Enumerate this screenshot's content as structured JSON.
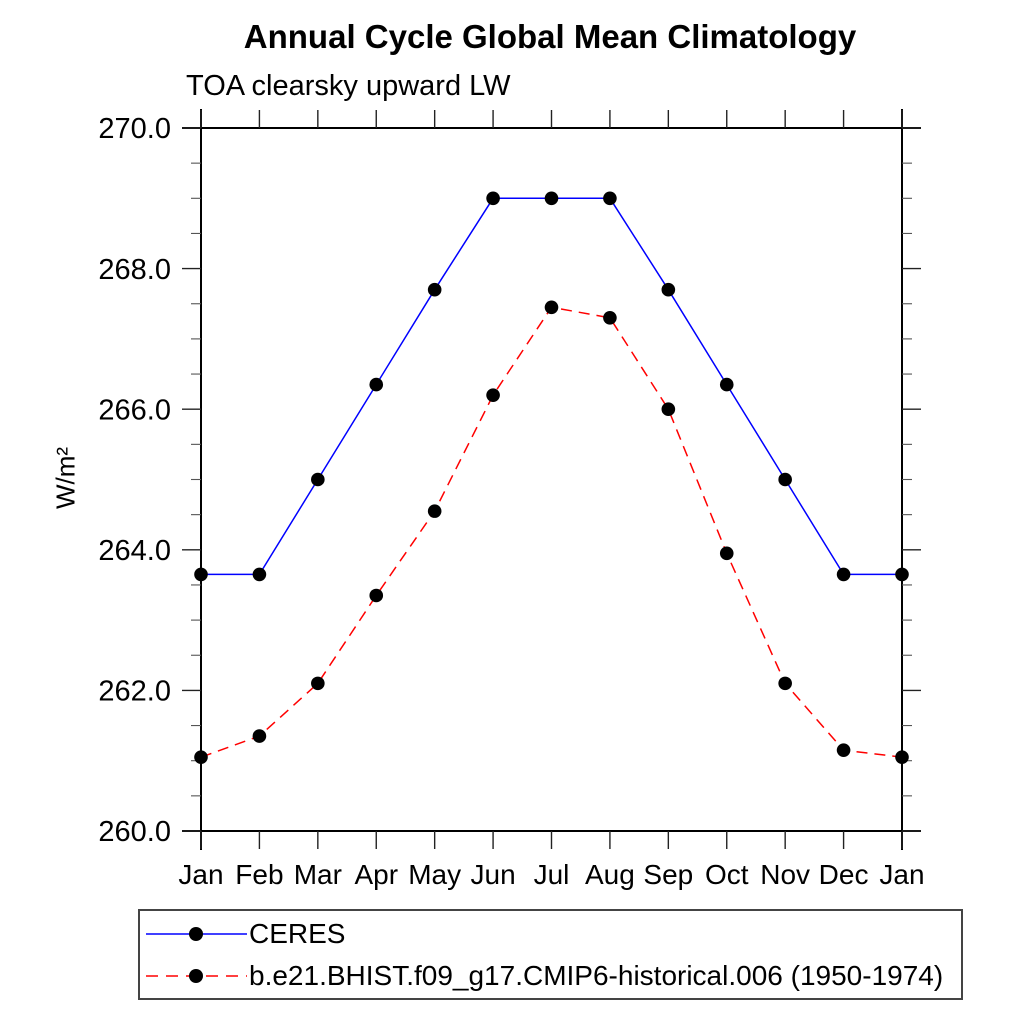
{
  "title": "Annual Cycle Global Mean Climatology",
  "subtitle": "TOA clearsky upward LW",
  "chart_data": {
    "type": "line",
    "title": "Annual Cycle Global Mean Climatology",
    "subtitle": "TOA clearsky upward LW",
    "ylabel": "W/m²",
    "xlabel": "",
    "x_categories": [
      "Jan",
      "Feb",
      "Mar",
      "Apr",
      "May",
      "Jun",
      "Jul",
      "Aug",
      "Sep",
      "Oct",
      "Nov",
      "Dec",
      "Jan"
    ],
    "ylim": [
      260.0,
      270.0
    ],
    "ytick_major": [
      260.0,
      262.0,
      264.0,
      266.0,
      268.0,
      270.0
    ],
    "ytick_major_labels": [
      "260.0",
      "262.0",
      "264.0",
      "266.0",
      "268.0",
      "270.0"
    ],
    "ytick_minor_step": 0.5,
    "grid": "off",
    "legend_position": "bottom-left",
    "marker_color": "#000000",
    "series": [
      {
        "name": "CERES",
        "color": "#0000ff",
        "line_style": "solid",
        "marker": "filled-circle",
        "values": [
          263.65,
          263.65,
          265.0,
          266.35,
          267.7,
          269.0,
          269.0,
          269.0,
          267.7,
          266.35,
          265.0,
          263.65,
          263.65
        ]
      },
      {
        "name": "b.e21.BHIST.f09_g17.CMIP6-historical.006 (1950-1974)",
        "color": "#ff0000",
        "line_style": "dashed",
        "marker": "filled-circle",
        "values": [
          261.05,
          261.35,
          262.1,
          263.35,
          264.55,
          266.2,
          267.45,
          267.3,
          266.0,
          263.95,
          262.1,
          261.15,
          261.05
        ]
      }
    ]
  }
}
